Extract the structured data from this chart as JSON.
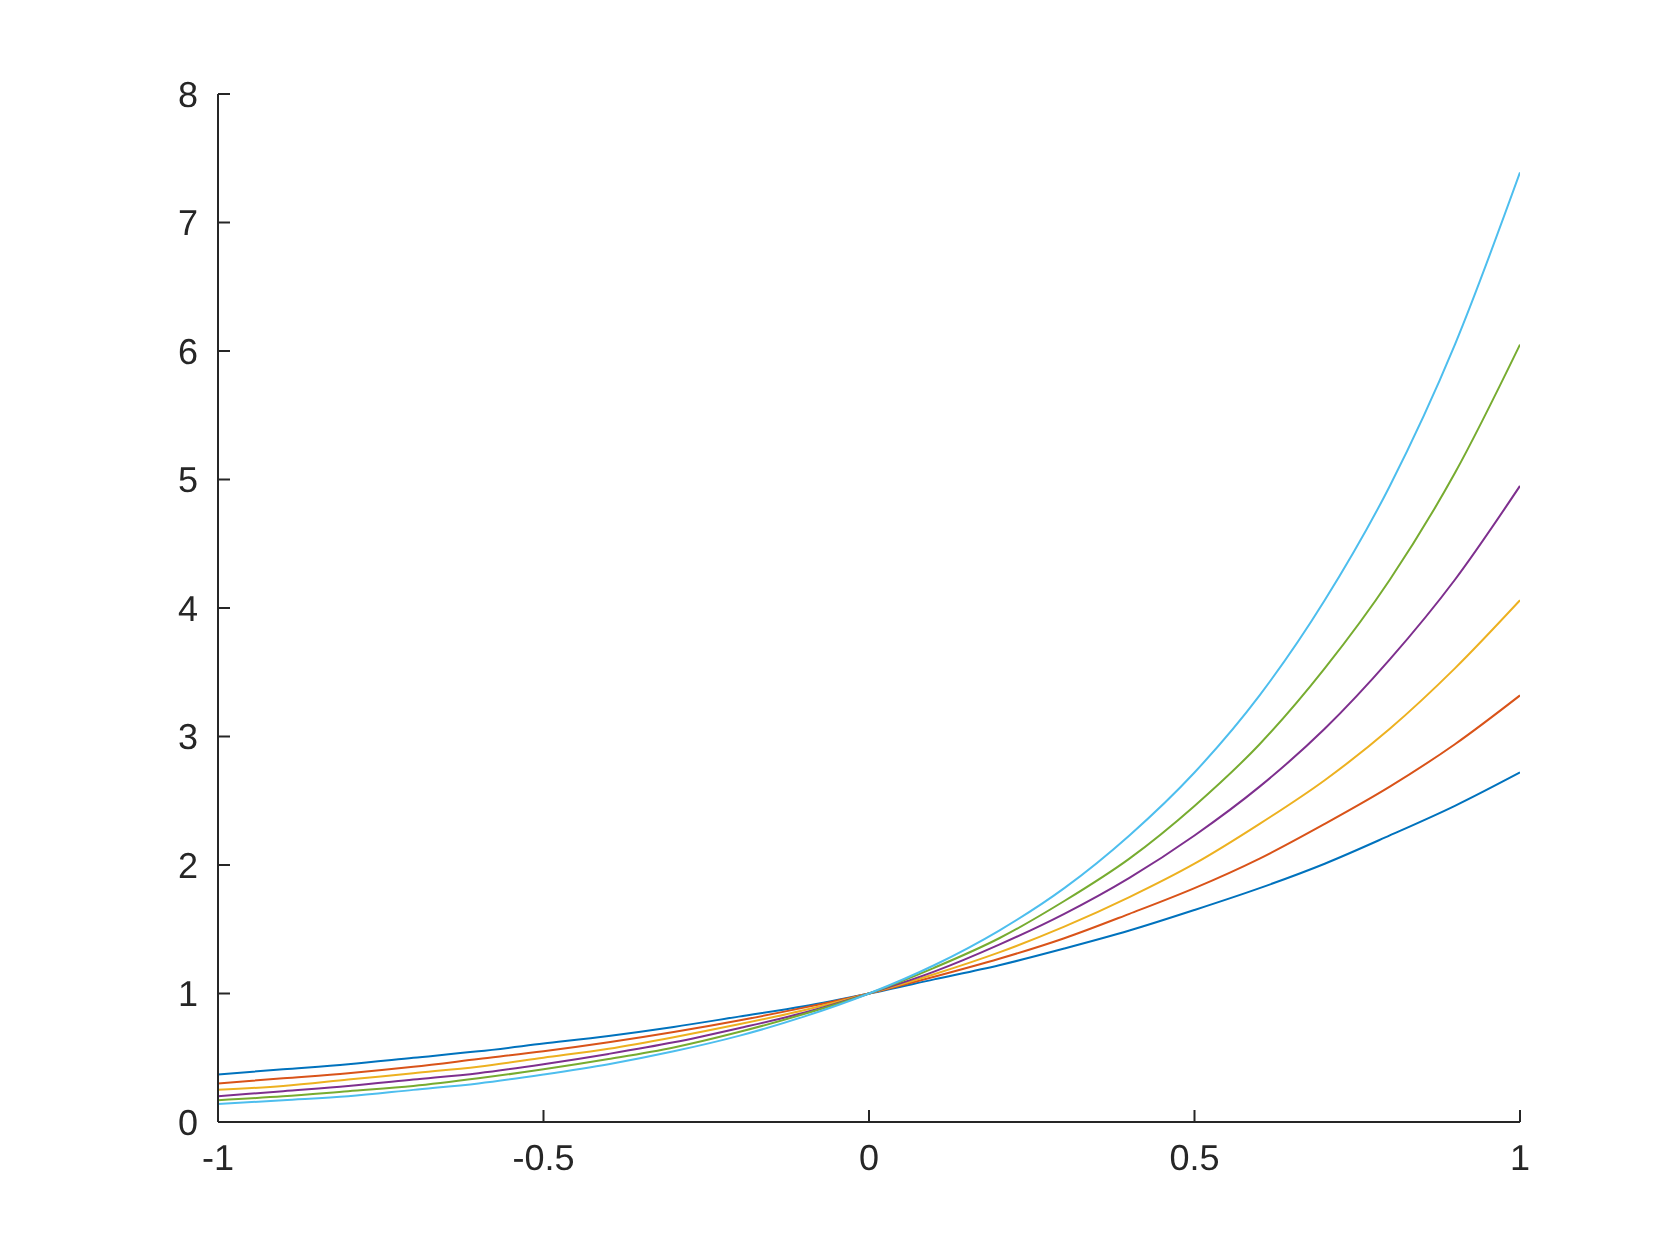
{
  "chart_data": {
    "type": "line",
    "x": [
      -1,
      -0.9,
      -0.8,
      -0.7,
      -0.6,
      -0.5,
      -0.4,
      -0.3,
      -0.2,
      -0.1,
      0,
      0.1,
      0.2,
      0.3,
      0.4,
      0.5,
      0.6,
      0.7,
      0.8,
      0.9,
      1
    ],
    "series": [
      {
        "color": "#0072bd",
        "values": [
          0.37,
          0.41,
          0.45,
          0.5,
          0.55,
          0.61,
          0.67,
          0.74,
          0.82,
          0.9,
          1,
          1.11,
          1.22,
          1.35,
          1.49,
          1.65,
          1.82,
          2.01,
          2.23,
          2.46,
          2.72
        ]
      },
      {
        "color": "#d95319",
        "values": [
          0.3,
          0.34,
          0.38,
          0.43,
          0.49,
          0.55,
          0.62,
          0.7,
          0.79,
          0.89,
          1,
          1.13,
          1.27,
          1.43,
          1.62,
          1.82,
          2.05,
          2.32,
          2.61,
          2.94,
          3.32
        ]
      },
      {
        "color": "#edb120",
        "values": [
          0.25,
          0.28,
          0.33,
          0.38,
          0.43,
          0.5,
          0.57,
          0.66,
          0.76,
          0.87,
          1,
          1.15,
          1.32,
          1.52,
          1.75,
          2.01,
          2.32,
          2.66,
          3.06,
          3.53,
          4.06
        ]
      },
      {
        "color": "#7e2f8e",
        "values": [
          0.2,
          0.24,
          0.28,
          0.33,
          0.38,
          0.45,
          0.53,
          0.62,
          0.73,
          0.85,
          1,
          1.17,
          1.38,
          1.62,
          1.9,
          2.23,
          2.61,
          3.06,
          3.6,
          4.22,
          4.95
        ]
      },
      {
        "color": "#77ac30",
        "values": [
          0.17,
          0.2,
          0.24,
          0.28,
          0.34,
          0.41,
          0.49,
          0.58,
          0.7,
          0.84,
          1,
          1.2,
          1.43,
          1.72,
          2.05,
          2.46,
          2.94,
          3.53,
          4.22,
          5.05,
          6.05
        ]
      },
      {
        "color": "#4dbeee",
        "values": [
          0.14,
          0.17,
          0.2,
          0.25,
          0.3,
          0.37,
          0.45,
          0.55,
          0.67,
          0.82,
          1,
          1.22,
          1.49,
          1.82,
          2.23,
          2.72,
          3.32,
          4.06,
          4.95,
          6.05,
          7.39
        ]
      }
    ],
    "xlim": [
      -1,
      1
    ],
    "ylim": [
      0,
      8
    ],
    "xticks": [
      -1,
      -0.5,
      0,
      0.5,
      1
    ],
    "yticks": [
      0,
      1,
      2,
      3,
      4,
      5,
      6,
      7,
      8
    ]
  }
}
